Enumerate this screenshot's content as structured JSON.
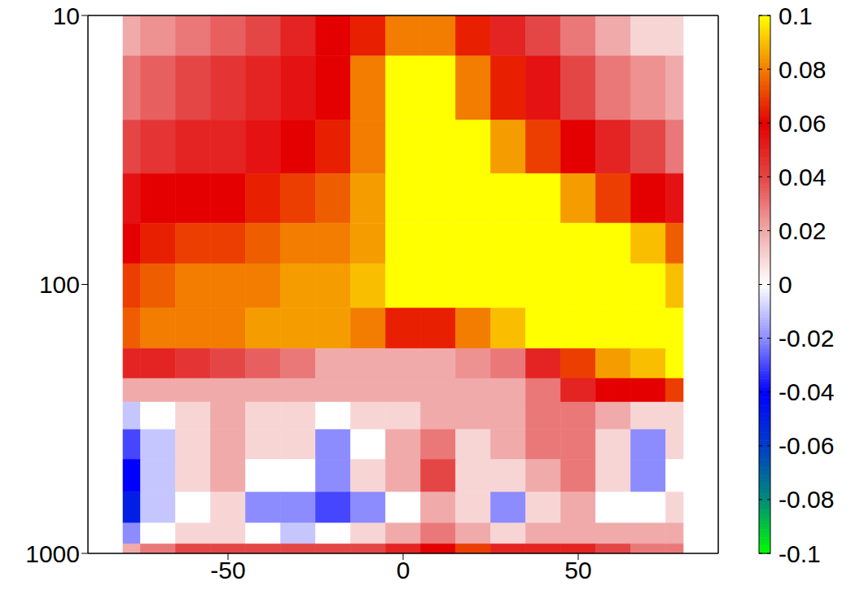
{
  "chart_data": {
    "type": "heatmap",
    "x": [
      -80,
      -70,
      -60,
      -50,
      -40,
      -30,
      -20,
      -10,
      0,
      10,
      20,
      30,
      40,
      50,
      60,
      70,
      80
    ],
    "y": [
      10,
      20,
      30,
      50,
      70,
      100,
      150,
      200,
      250,
      300,
      400,
      500,
      700,
      850,
      1000
    ],
    "values": [
      [
        0.02,
        0.025,
        0.03,
        0.035,
        0.04,
        0.05,
        0.06,
        0.065,
        0.08,
        0.08,
        0.065,
        0.05,
        0.04,
        0.03,
        0.02,
        0.01,
        0.01
      ],
      [
        0.03,
        0.035,
        0.04,
        0.045,
        0.05,
        0.055,
        0.06,
        0.08,
        0.1,
        0.1,
        0.08,
        0.065,
        0.055,
        0.04,
        0.03,
        0.025,
        0.02
      ],
      [
        0.04,
        0.045,
        0.05,
        0.05,
        0.055,
        0.06,
        0.065,
        0.08,
        0.1,
        0.1,
        0.1,
        0.085,
        0.07,
        0.06,
        0.05,
        0.04,
        0.03
      ],
      [
        0.055,
        0.06,
        0.06,
        0.06,
        0.065,
        0.07,
        0.075,
        0.085,
        0.1,
        0.1,
        0.1,
        0.1,
        0.1,
        0.085,
        0.07,
        0.06,
        0.055
      ],
      [
        0.06,
        0.065,
        0.07,
        0.07,
        0.075,
        0.08,
        0.08,
        0.085,
        0.1,
        0.1,
        0.1,
        0.1,
        0.1,
        0.1,
        0.1,
        0.09,
        0.075
      ],
      [
        0.07,
        0.075,
        0.08,
        0.08,
        0.08,
        0.085,
        0.085,
        0.09,
        0.1,
        0.1,
        0.1,
        0.1,
        0.1,
        0.1,
        0.1,
        0.1,
        0.09
      ],
      [
        0.075,
        0.08,
        0.08,
        0.08,
        0.085,
        0.085,
        0.085,
        0.08,
        0.065,
        0.065,
        0.08,
        0.09,
        0.1,
        0.1,
        0.1,
        0.1,
        0.1
      ],
      [
        0.05,
        0.05,
        0.045,
        0.04,
        0.035,
        0.03,
        0.02,
        0.02,
        0.02,
        0.02,
        0.025,
        0.03,
        0.05,
        0.07,
        0.085,
        0.09,
        0.1
      ],
      [
        0.02,
        0.02,
        0.02,
        0.02,
        0.02,
        0.02,
        0.02,
        0.02,
        0.02,
        0.02,
        0.02,
        0.02,
        0.03,
        0.05,
        0.06,
        0.06,
        0.07
      ],
      [
        -0.01,
        0.0,
        0.01,
        0.02,
        0.01,
        0.01,
        0.0,
        0.01,
        0.01,
        0.02,
        0.02,
        0.02,
        0.03,
        0.03,
        0.02,
        0.01,
        0.01
      ],
      [
        -0.03,
        -0.01,
        0.01,
        0.02,
        0.01,
        0.01,
        -0.02,
        0.0,
        0.02,
        0.03,
        0.01,
        0.02,
        0.03,
        0.03,
        0.01,
        -0.02,
        0.01
      ],
      [
        -0.04,
        -0.01,
        0.01,
        0.02,
        0.0,
        0.0,
        -0.02,
        0.01,
        0.02,
        0.04,
        0.01,
        0.01,
        0.02,
        0.03,
        0.01,
        -0.02,
        0.0
      ],
      [
        -0.05,
        -0.01,
        0.0,
        0.01,
        -0.02,
        -0.02,
        -0.03,
        -0.02,
        0.0,
        0.02,
        0.01,
        -0.02,
        0.01,
        0.02,
        0.0,
        0.0,
        0.01
      ],
      [
        -0.02,
        0.0,
        0.01,
        0.01,
        0.0,
        -0.01,
        0.0,
        0.01,
        0.02,
        0.03,
        0.02,
        0.01,
        0.02,
        0.02,
        0.02,
        0.02,
        0.02
      ],
      [
        0.02,
        0.03,
        0.04,
        0.04,
        0.04,
        0.04,
        0.04,
        0.04,
        0.05,
        0.06,
        0.07,
        0.05,
        0.05,
        0.05,
        0.04,
        0.03,
        0.03
      ]
    ],
    "xlim": [
      -90,
      90
    ],
    "xticks": [
      -50,
      0,
      50
    ],
    "ylim": [
      1000,
      10
    ],
    "yticks": [
      10,
      100,
      1000
    ],
    "log": "y",
    "colorbar": {
      "range": [
        -0.1,
        0.1
      ],
      "ticks": [
        -0.1,
        -0.08,
        -0.06,
        -0.04,
        -0.02,
        0,
        0.02,
        0.04,
        0.06,
        0.08,
        0.1
      ]
    }
  }
}
